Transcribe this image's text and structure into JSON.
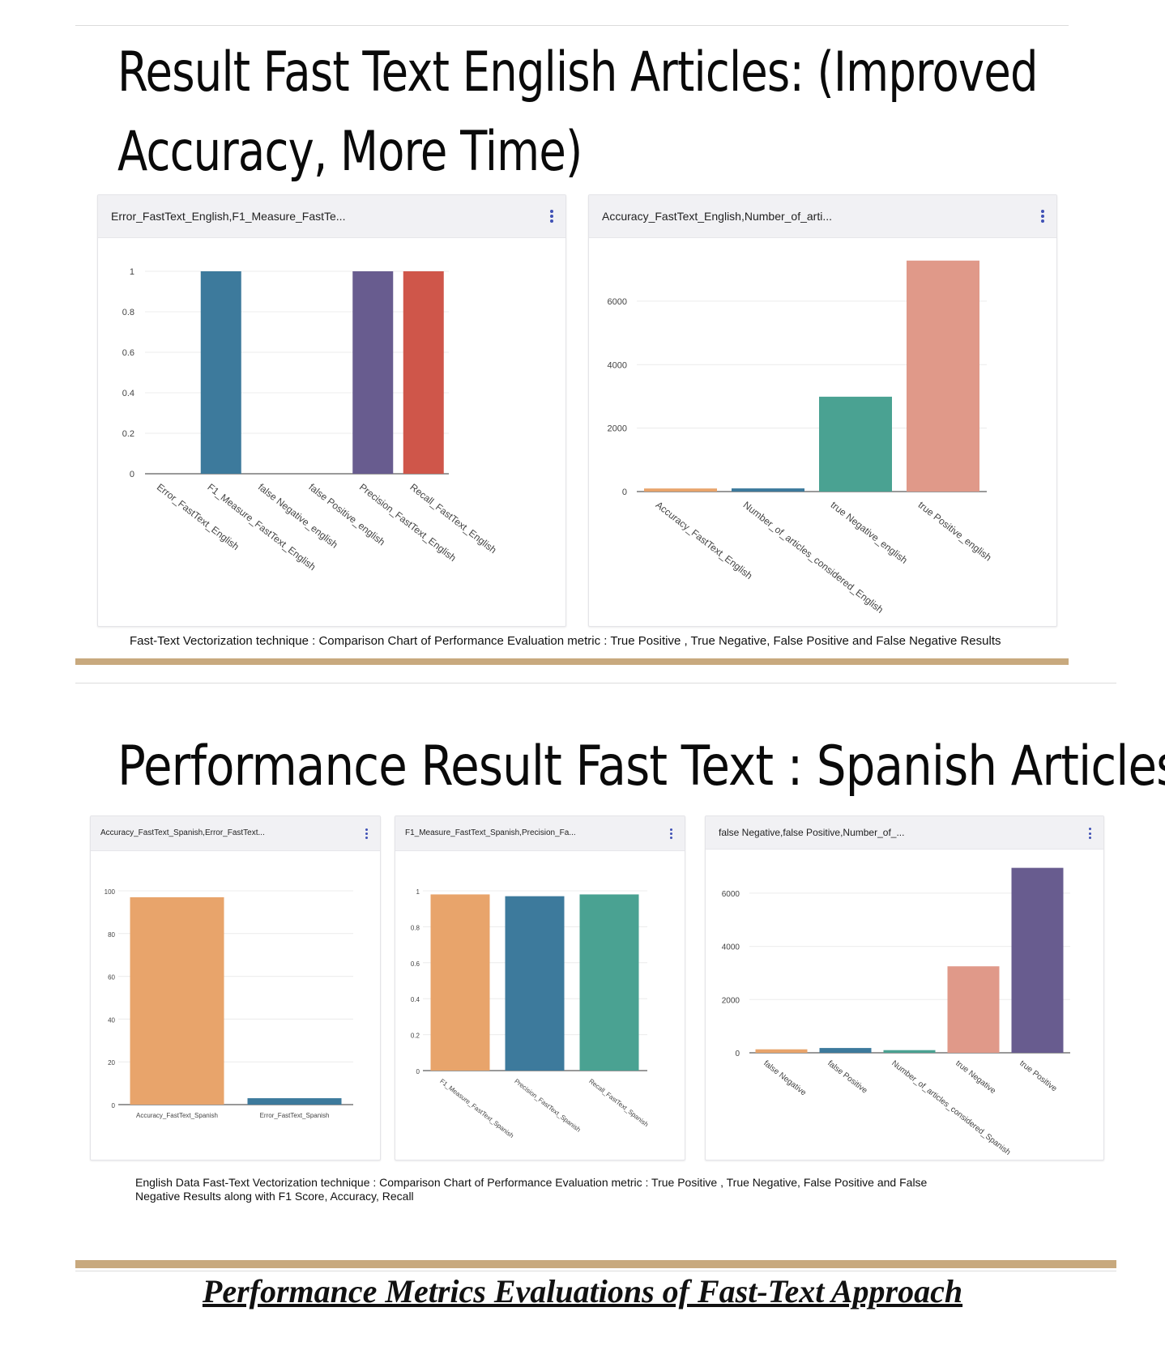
{
  "section1": {
    "title_line1": "Result Fast Text English Articles: (Improved",
    "title_line2": "Accuracy, More Time)",
    "caption": "Fast-Text Vectorization technique : Comparison Chart of Performance Evaluation metric : True Positive , True Negative, False Positive and False Negative Results"
  },
  "section2": {
    "title": "Performance Result Fast Text : Spanish Articles",
    "caption_line1": "English Data Fast-Text Vectorization technique : Comparison Chart of Performance Evaluation metric : True Positive , True Negative, False Positive and False",
    "caption_line2": "Negative Results along with F1 Score, Accuracy, Recall"
  },
  "footer": {
    "title": "Performance Metrics Evaluations of Fast-Text Approach"
  },
  "colors": {
    "orange": "#e8a46b",
    "blue": "#3d7a9c",
    "teal": "#4aa292",
    "salmon": "#e09989",
    "purple": "#685c8f",
    "red": "#cf564a",
    "accent_rule": "#c8a97e",
    "kebab": "#3f51b5"
  },
  "chart_data": [
    {
      "type": "bar",
      "card_title": "Error_FastText_English,F1_Measure_FastTe...",
      "categories": [
        "Error_FastText_English",
        "F1_Measure_FastText_English",
        "false Negative_english",
        "false Positive_english",
        "Precision_FastText_English",
        "Recall_FastText_English"
      ],
      "values": [
        0,
        1,
        0,
        0,
        1,
        1
      ],
      "bar_colors": [
        "#e8a46b",
        "#3d7a9c",
        "#4aa292",
        "#e09989",
        "#685c8f",
        "#cf564a"
      ],
      "ylim": [
        0,
        1
      ],
      "yticks": [
        0,
        0.2,
        0.4,
        0.6,
        0.8,
        1
      ],
      "ytick_labels": [
        "0",
        "0.2",
        "0.4",
        "0.6",
        "0.8",
        "1"
      ],
      "grid": true
    },
    {
      "type": "bar",
      "card_title": "Accuracy_FastText_English,Number_of_arti...",
      "categories": [
        "Accuracy_FastText_English",
        "Number_of_articles_considered_English",
        "true Negative_english",
        "true Positive_english"
      ],
      "values": [
        97,
        100,
        2990,
        7280
      ],
      "bar_colors": [
        "#e8a46b",
        "#3d7a9c",
        "#4aa292",
        "#e09989"
      ],
      "ylim": [
        0,
        7300
      ],
      "yticks": [
        0,
        2000,
        4000,
        6000
      ],
      "ytick_labels": [
        "0",
        "2000",
        "4000",
        "6000"
      ],
      "grid": true
    },
    {
      "type": "bar",
      "card_title": "Accuracy_FastText_Spanish,Error_FastText...",
      "categories": [
        "Accuracy_FastText_Spanish",
        "Error_FastText_Spanish"
      ],
      "values": [
        97,
        3
      ],
      "bar_colors": [
        "#e8a46b",
        "#3d7a9c"
      ],
      "ylim": [
        0,
        100
      ],
      "yticks": [
        0,
        20,
        40,
        60,
        80,
        100
      ],
      "ytick_labels": [
        "0",
        "20",
        "40",
        "60",
        "80",
        "100"
      ],
      "grid": true
    },
    {
      "type": "bar",
      "card_title": "F1_Measure_FastText_Spanish,Precision_Fa...",
      "categories": [
        "F1_Measure_FastText_Spanish",
        "Precision_FastText_Spanish",
        "Recall_FastText_Spanish"
      ],
      "values": [
        0.98,
        0.97,
        0.98
      ],
      "bar_colors": [
        "#e8a46b",
        "#3d7a9c",
        "#4aa292"
      ],
      "ylim": [
        0,
        1
      ],
      "yticks": [
        0,
        0.2,
        0.4,
        0.6,
        0.8,
        1
      ],
      "ytick_labels": [
        "0",
        "0.2",
        "0.4",
        "0.6",
        "0.8",
        "1"
      ],
      "grid": true
    },
    {
      "type": "bar",
      "card_title": "false Negative,false Positive,Number_of_...",
      "categories": [
        "false Negative",
        "false Positive",
        "Number_of_articles_considered_Spanish",
        "true Negative",
        "true Positive"
      ],
      "values": [
        130,
        180,
        100,
        3250,
        6950
      ],
      "bar_colors": [
        "#e8a46b",
        "#3d7a9c",
        "#4aa292",
        "#e09989",
        "#685c8f"
      ],
      "ylim": [
        0,
        7000
      ],
      "yticks": [
        0,
        2000,
        4000,
        6000
      ],
      "ytick_labels": [
        "0",
        "2000",
        "4000",
        "6000"
      ],
      "grid": true
    }
  ]
}
